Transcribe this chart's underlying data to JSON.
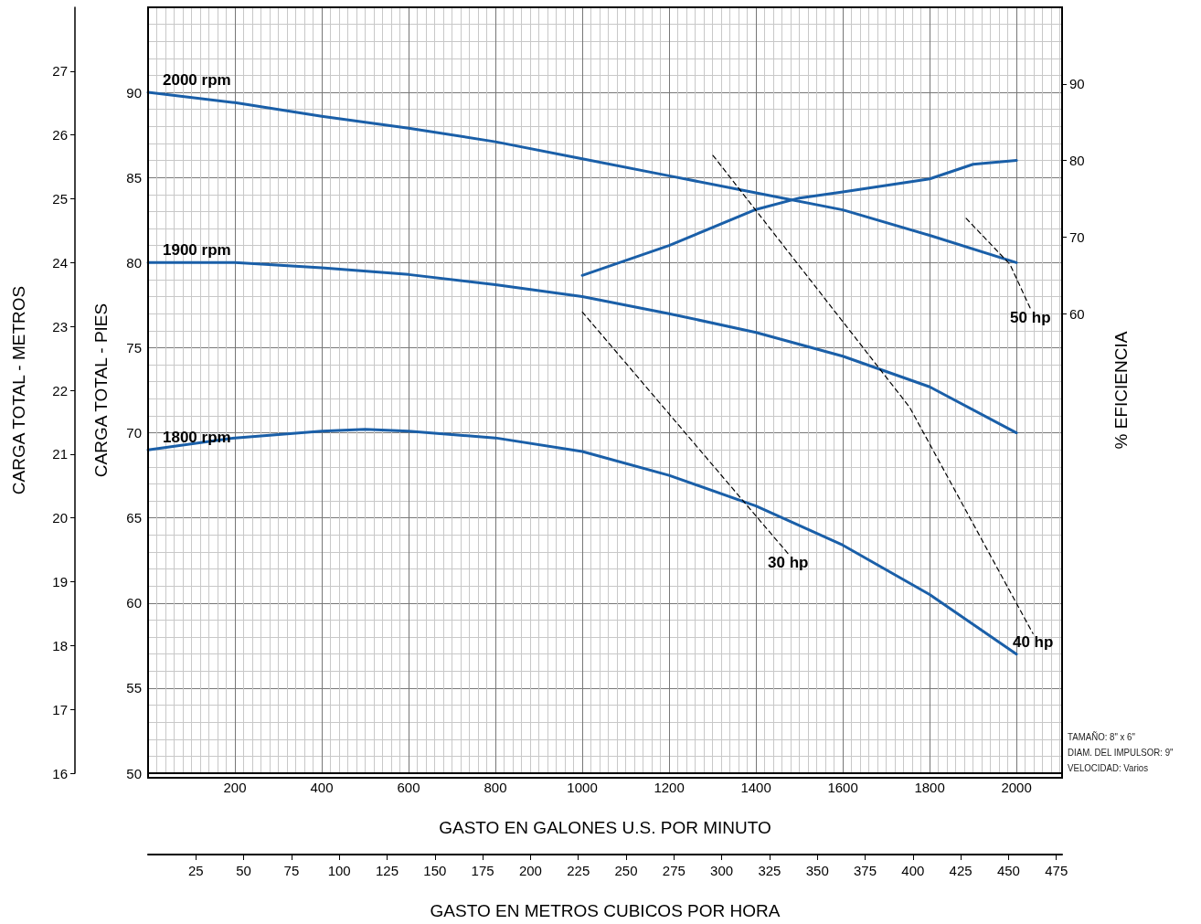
{
  "chart_data": {
    "type": "line",
    "xlabel": "GASTO EN GALONES U.S. POR MINUTO",
    "ylabel": "CARGA TOTAL - PIES",
    "y2label": "% EFICIENCIA",
    "y3label": "CARGA TOTAL - METROS",
    "x2label": "GASTO EN METROS CUBICOS POR HORA",
    "xlim": [
      0,
      2105
    ],
    "xticks": [
      200,
      400,
      600,
      800,
      1000,
      1200,
      1400,
      1600,
      1800,
      2000
    ],
    "x2lim": [
      0,
      478
    ],
    "x2ticks": [
      25,
      50,
      75,
      100,
      125,
      150,
      175,
      200,
      225,
      250,
      275,
      300,
      325,
      350,
      375,
      400,
      425,
      450,
      475
    ],
    "ylim": [
      50,
      95
    ],
    "yticks": [
      50,
      55,
      60,
      65,
      70,
      75,
      80,
      85,
      90
    ],
    "y2lim": [
      0,
      100
    ],
    "y2ticks": [
      60,
      70,
      80,
      90
    ],
    "y3lim": [
      16,
      28
    ],
    "y3ticks": [
      16,
      17,
      18,
      19,
      20,
      21,
      22,
      23,
      24,
      25,
      26,
      27
    ],
    "grid": true,
    "marker": "none",
    "line_style": "solid",
    "series": [
      {
        "name": "2000 rpm",
        "color": "#1a5fa8",
        "x": [
          0,
          200,
          400,
          600,
          800,
          1000,
          1200,
          1400,
          1600,
          1800,
          2000
        ],
        "values": [
          90,
          89.4,
          88.6,
          87.9,
          87.1,
          86.1,
          85.1,
          84.1,
          83.1,
          81.6,
          80
        ]
      },
      {
        "name": "1900 rpm",
        "color": "#1a5fa8",
        "x": [
          0,
          200,
          400,
          600,
          800,
          1000,
          1200,
          1400,
          1600,
          1800,
          2000
        ],
        "values": [
          80,
          80,
          79.7,
          79.3,
          78.7,
          78,
          77,
          75.9,
          74.5,
          72.7,
          70
        ]
      },
      {
        "name": "1800 rpm",
        "color": "#1a5fa8",
        "x": [
          0,
          200,
          400,
          500,
          600,
          800,
          1000,
          1200,
          1400,
          1600,
          1800,
          2000
        ],
        "values": [
          69,
          69.7,
          70.1,
          70.2,
          70.1,
          69.7,
          68.9,
          67.5,
          65.7,
          63.4,
          60.5,
          57
        ]
      },
      {
        "color": "#1a5fa8",
        "axis": "y2",
        "x": [
          1000,
          1200,
          1400,
          1500,
          1600,
          1800,
          1900,
          2000
        ],
        "values": [
          65,
          68.9,
          73.6,
          75.1,
          75.9,
          77.6,
          79.5,
          80
        ]
      },
      {
        "name": "30 hp",
        "color": "#000000",
        "line_style": "dashed",
        "x": [
          1000,
          1474
        ],
        "values": [
          77.1,
          62.9
        ]
      },
      {
        "name": "40 hp",
        "color": "#000000",
        "line_style": "dashed",
        "x": [
          1301,
          1754,
          2038
        ],
        "values": [
          86.3,
          71.5,
          58.2
        ]
      },
      {
        "name": "50 hp",
        "color": "#000000",
        "line_style": "dashed",
        "x": [
          1884,
          1985,
          2032
        ],
        "values": [
          82.6,
          79.9,
          77.3
        ]
      }
    ],
    "annotations": [
      "TAMAÑO: 8\" x 6\"",
      "DIAM. DEL IMPULSOR: 9\"",
      "VELOCIDAD: Varios"
    ]
  }
}
